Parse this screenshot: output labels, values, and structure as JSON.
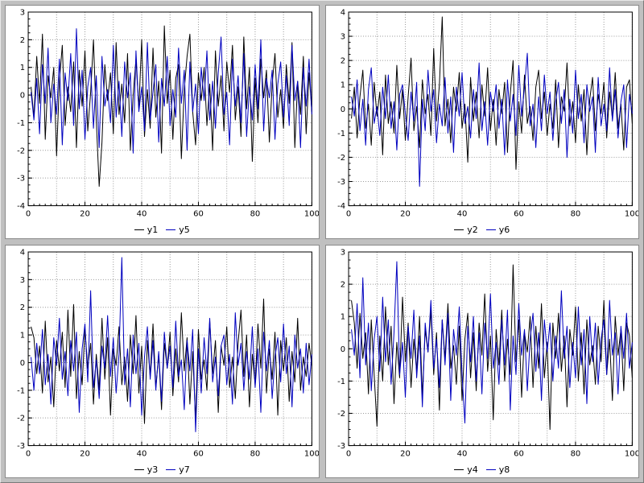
{
  "window": {
    "background": "#c0c0c0",
    "plot_background": "#ffffff"
  },
  "chart_data": [
    {
      "type": "line",
      "x_start": 1,
      "x_step": 1,
      "x_range": [
        0,
        100
      ],
      "y_range": [
        -4,
        3
      ],
      "x_ticks": [
        0,
        20,
        40,
        60,
        80,
        100
      ],
      "x_grid_step": 10,
      "x_minor_step": 2,
      "y_ticks": [
        3,
        2,
        1,
        0,
        -1,
        -2,
        -3,
        -4
      ],
      "grid": "dotted",
      "legend_position": "bottom",
      "series": [
        {
          "name": "y1",
          "color": "#000000",
          "values": [
            0.3,
            -0.8,
            1.4,
            -0.3,
            2.2,
            -1.6,
            0.7,
            -0.1,
            1.0,
            -2.2,
            0.5,
            1.8,
            -1.1,
            0.3,
            -0.6,
            1.2,
            -1.9,
            0.9,
            -0.4,
            1.6,
            -1.3,
            0.1,
            2.0,
            -0.9,
            -3.3,
            -1.7,
            1.1,
            -0.2,
            0.8,
            -1.4,
            1.9,
            -0.7,
            0.4,
            -1.0,
            1.5,
            -2.0,
            0.0,
            1.3,
            -0.5,
            2.0,
            -1.5,
            0.2,
            -1.2,
            1.7,
            -0.8,
            0.5,
            -2.1,
            2.5,
            -0.3,
            0.9,
            -1.6,
            0.6,
            1.1,
            -2.3,
            0.2,
            1.4,
            2.2,
            -0.6,
            -1.8,
            0.8,
            -0.2,
            1.0,
            -1.1,
            0.4,
            -2.0,
            1.6,
            -0.4,
            0.7,
            -1.3,
            1.2,
            0.1,
            1.8,
            -0.9,
            0.3,
            -1.5,
            2.1,
            -0.5,
            1.0,
            -2.4,
            0.6,
            -1.0,
            1.3,
            -0.1,
            0.9,
            -1.7,
            0.4,
            1.5,
            -0.8,
            0.2,
            -1.2,
            1.1,
            -0.3,
            1.9,
            -1.9,
            0.5,
            -0.7,
            1.4,
            -1.4,
            0.8,
            -0.6
          ]
        },
        {
          "name": "y5",
          "color": "#0000bf",
          "values": [
            0.1,
            -0.9,
            0.6,
            -1.4,
            1.1,
            -0.3,
            1.7,
            -1.0,
            0.4,
            -0.7,
            1.3,
            -1.8,
            0.8,
            -0.2,
            1.5,
            -1.1,
            2.4,
            -0.5,
            0.9,
            -1.6,
            0.3,
            1.0,
            -1.2,
            0.7,
            -1.9,
            1.4,
            -0.4,
            0.2,
            -1.0,
            1.8,
            -0.8,
            0.5,
            -1.5,
            1.2,
            -0.1,
            0.8,
            -2.1,
            1.6,
            -0.6,
            0.3,
            -1.3,
            1.9,
            -0.9,
            0.1,
            1.1,
            -1.7,
            0.6,
            -0.4,
            1.4,
            -1.1,
            0.2,
            -0.8,
            1.7,
            -0.3,
            0.9,
            -2.0,
            1.2,
            -0.6,
            0.4,
            -1.4,
            1.0,
            -0.2,
            1.6,
            -0.9,
            0.5,
            -1.2,
            0.8,
            2.1,
            -0.7,
            0.1,
            -1.8,
            1.3,
            -0.4,
            0.7,
            -1.0,
            1.5,
            -1.5,
            0.3,
            -0.9,
            1.1,
            -0.5,
            2.0,
            -1.3,
            0.6,
            -0.1,
            0.9,
            -1.6,
            0.4,
            1.2,
            -0.8,
            0.7,
            -1.1,
            1.8,
            -0.2,
            0.5,
            -1.9,
            1.0,
            -0.4,
            1.3,
            -0.7
          ]
        }
      ]
    },
    {
      "type": "line",
      "x_start": 1,
      "x_step": 1,
      "x_range": [
        0,
        100
      ],
      "y_range": [
        -4,
        4
      ],
      "x_ticks": [
        0,
        20,
        40,
        60,
        80,
        100
      ],
      "x_grid_step": 10,
      "x_minor_step": 2,
      "y_ticks": [
        4,
        3,
        2,
        1,
        0,
        -1,
        -2,
        -3,
        -4
      ],
      "grid": "dotted",
      "legend_position": "bottom",
      "series": [
        {
          "name": "y2",
          "color": "#000000",
          "values": [
            -0.4,
            0.9,
            -1.2,
            0.5,
            1.6,
            -0.8,
            0.2,
            -1.5,
            1.1,
            -0.3,
            0.7,
            -1.9,
            1.4,
            -0.6,
            0.3,
            -1.0,
            1.8,
            -0.4,
            0.8,
            -1.3,
            0.5,
            2.1,
            -0.9,
            0.1,
            -1.6,
            1.2,
            -0.2,
            0.6,
            -1.1,
            2.5,
            -0.5,
            1.0,
            3.8,
            -0.7,
            0.4,
            -1.4,
            0.9,
            -0.1,
            1.5,
            -0.8,
            0.2,
            -2.2,
            1.3,
            -0.5,
            0.7,
            -1.2,
            1.0,
            -0.3,
            1.7,
            -0.9,
            0.4,
            -1.5,
            0.8,
            -0.2,
            1.1,
            -1.8,
            0.6,
            2.0,
            -2.5,
            0.3,
            -1.0,
            1.4,
            -0.6,
            0.1,
            -1.3,
            0.9,
            1.6,
            -0.4,
            0.7,
            -1.1,
            0.2,
            -0.8,
            1.2,
            -1.6,
            0.5,
            -0.1,
            1.9,
            -0.7,
            0.3,
            -1.4,
            1.0,
            -0.5,
            0.8,
            -1.9,
            0.4,
            1.3,
            -0.9,
            0.6,
            -0.2,
            1.1,
            -1.2,
            0.7,
            -0.4,
            1.5,
            -0.8,
            0.2,
            -1.7,
            0.9,
            1.2,
            -0.6
          ]
        },
        {
          "name": "y6",
          "color": "#0000bf",
          "values": [
            0.5,
            -0.3,
            1.2,
            -0.9,
            0.4,
            -1.5,
            0.8,
            1.7,
            -0.6,
            0.1,
            -1.1,
            0.9,
            -0.4,
            1.4,
            -0.8,
            0.3,
            -1.7,
            0.6,
            1.0,
            -0.2,
            -1.3,
            0.7,
            -0.5,
            1.1,
            -3.2,
            0.4,
            -0.9,
            1.6,
            -0.1,
            0.8,
            -1.4,
            0.2,
            -0.7,
            1.3,
            -1.0,
            0.5,
            -1.8,
            0.9,
            -0.3,
            1.5,
            -0.6,
            0.1,
            -1.2,
            0.8,
            -0.4,
            1.9,
            -0.9,
            0.3,
            -1.5,
            0.7,
            -0.1,
            1.0,
            -0.8,
            0.4,
            -1.9,
            1.2,
            -0.5,
            0.6,
            -1.1,
            1.8,
            -0.3,
            0.9,
            2.3,
            -0.7,
            0.2,
            -1.6,
            0.5,
            -0.9,
            1.4,
            -0.2,
            0.7,
            -1.3,
            0.3,
            1.1,
            -0.6,
            0.8,
            -2.0,
            0.4,
            -1.0,
            1.6,
            -0.4,
            0.6,
            -1.4,
            1.0,
            -0.1,
            0.5,
            -1.8,
            1.3,
            -0.7,
            0.2,
            -0.9,
            1.7,
            -0.5,
            0.8,
            -1.2,
            0.3,
            1.0,
            -1.6,
            0.6,
            -0.2
          ]
        }
      ]
    },
    {
      "type": "line",
      "x_start": 1,
      "x_step": 1,
      "x_range": [
        0,
        100
      ],
      "y_range": [
        -3,
        4
      ],
      "x_ticks": [
        0,
        20,
        40,
        60,
        80,
        100
      ],
      "x_grid_step": 10,
      "x_minor_step": 2,
      "y_ticks": [
        4,
        3,
        2,
        1,
        0,
        -1,
        -2,
        -3
      ],
      "grid": "dotted",
      "legend_position": "bottom",
      "series": [
        {
          "name": "y3",
          "color": "#000000",
          "values": [
            1.3,
            0.9,
            -0.4,
            0.6,
            -1.1,
            1.5,
            -0.7,
            0.2,
            -1.6,
            0.8,
            -0.3,
            1.1,
            -0.9,
            1.9,
            -0.5,
            2.1,
            -1.3,
            0.4,
            -0.8,
            1.2,
            -0.2,
            0.7,
            -1.5,
            0.3,
            -1.0,
            1.6,
            -0.6,
            0.9,
            -1.9,
            0.5,
            -0.1,
            1.3,
            -0.8,
            0.2,
            -1.4,
            1.0,
            -0.4,
            1.7,
            -1.1,
            0.6,
            -2.2,
            0.8,
            -0.5,
            1.4,
            -0.9,
            0.3,
            -1.7,
            0.7,
            -0.2,
            1.1,
            -1.2,
            0.5,
            -0.7,
            1.8,
            -0.3,
            0.9,
            -1.5,
            0.4,
            -2.1,
            1.2,
            -0.6,
            0.1,
            -1.0,
            1.5,
            -0.4,
            0.8,
            -1.8,
            0.6,
            -0.1,
            1.3,
            -0.9,
            0.2,
            -1.3,
            0.7,
            1.9,
            -0.5,
            1.0,
            -1.6,
            0.3,
            -0.8,
            1.4,
            -0.2,
            2.3,
            -1.1,
            0.5,
            -0.6,
            1.1,
            -1.9,
            0.8,
            -0.3,
            0.9,
            -1.4,
            0.4,
            -0.7,
            1.6,
            -1.0,
            0.2,
            -0.5,
            0.7,
            -0.1
          ]
        },
        {
          "name": "y7",
          "color": "#0000bf",
          "values": [
            0.2,
            -1.0,
            0.7,
            -0.4,
            1.2,
            -0.8,
            0.3,
            -1.5,
            0.9,
            -0.1,
            1.6,
            -0.6,
            0.4,
            -1.2,
            0.8,
            -0.3,
            1.1,
            -1.8,
            0.5,
            1.4,
            -0.7,
            2.6,
            -0.9,
            0.1,
            -1.3,
            0.6,
            -0.2,
            1.7,
            -0.5,
            0.9,
            -1.1,
            0.3,
            3.8,
            -0.8,
            0.5,
            -1.6,
            1.0,
            -0.4,
            0.7,
            -1.9,
            0.2,
            1.3,
            -0.6,
            0.8,
            -1.0,
            0.4,
            -1.4,
            1.1,
            -0.2,
            0.6,
            -0.9,
            1.5,
            -0.5,
            0.1,
            -1.7,
            0.8,
            -0.3,
            1.2,
            -2.5,
            0.5,
            -1.1,
            0.9,
            -0.4,
            1.6,
            -0.7,
            0.2,
            -1.2,
            0.6,
            1.0,
            -0.8,
            0.3,
            -1.5,
            1.8,
            -0.1,
            0.7,
            -1.0,
            0.4,
            -0.6,
            1.3,
            -0.9,
            0.5,
            -1.8,
            1.1,
            -0.3,
            0.8,
            -1.3,
            0.2,
            0.9,
            -0.7,
            1.4,
            -0.4,
            0.6,
            -1.6,
            1.0,
            -0.2,
            0.5,
            -1.1,
            0.7,
            -0.8,
            0.3
          ]
        }
      ]
    },
    {
      "type": "line",
      "x_start": 1,
      "x_step": 1,
      "x_range": [
        0,
        100
      ],
      "y_range": [
        -3,
        3
      ],
      "x_ticks": [
        0,
        20,
        40,
        60,
        80,
        100
      ],
      "x_grid_step": 10,
      "x_minor_step": 2,
      "y_ticks": [
        3,
        2,
        1,
        0,
        -1,
        -2,
        -3
      ],
      "grid": "dotted",
      "legend_position": "bottom",
      "series": [
        {
          "name": "y4",
          "color": "#000000",
          "values": [
            1.5,
            0.8,
            -0.6,
            1.1,
            -0.3,
            0.5,
            -1.4,
            0.9,
            -0.8,
            -2.4,
            0.4,
            -1.0,
            1.3,
            -0.5,
            0.7,
            -1.7,
            0.2,
            -0.9,
            1.6,
            -0.4,
            0.8,
            -1.2,
            0.3,
            -0.7,
            1.0,
            -1.5,
            0.6,
            -0.1,
            1.2,
            -0.8,
            0.5,
            -1.9,
            0.9,
            -0.3,
            1.4,
            -0.6,
            0.1,
            -1.1,
            0.7,
            -1.6,
            0.3,
            1.1,
            -0.9,
            0.5,
            -1.3,
            0.8,
            -0.2,
            1.7,
            -0.7,
            0.4,
            -2.2,
            0.6,
            -0.5,
            1.2,
            -1.0,
            0.3,
            -0.8,
            2.6,
            -0.4,
            0.9,
            -1.5,
            0.5,
            -0.1,
            1.0,
            -1.2,
            0.7,
            -0.6,
            1.4,
            -0.9,
            0.2,
            -2.5,
            0.8,
            -0.3,
            1.1,
            -0.7,
            0.4,
            -1.8,
            0.6,
            -0.2,
            1.3,
            -1.0,
            0.5,
            -1.4,
            0.9,
            -0.5,
            0.1,
            -1.1,
            0.7,
            -0.4,
            1.5,
            -0.8,
            0.3,
            -1.6,
            1.0,
            -0.2,
            0.6,
            -1.3,
            0.8,
            0.4,
            -0.9
          ]
        },
        {
          "name": "y8",
          "color": "#0000bf",
          "values": [
            0.6,
            -0.2,
            1.4,
            -0.9,
            2.2,
            -0.5,
            0.8,
            -1.3,
            0.3,
            1.0,
            -0.7,
            1.6,
            -0.4,
            0.9,
            -1.1,
            0.5,
            2.7,
            -0.8,
            0.2,
            -1.5,
            0.7,
            -0.3,
            1.2,
            -0.9,
            0.4,
            -1.8,
            0.8,
            -0.1,
            1.5,
            -0.6,
            0.3,
            -1.2,
            0.9,
            -0.5,
            1.1,
            -1.6,
            0.6,
            -0.2,
            1.3,
            -0.8,
            -2.3,
            0.7,
            -0.4,
            1.0,
            -1.0,
            0.5,
            -1.4,
            0.8,
            -0.3,
            1.7,
            -0.6,
            0.2,
            -1.1,
            0.9,
            -0.5,
            1.2,
            -1.9,
            0.4,
            -0.8,
            1.4,
            -0.2,
            0.6,
            -1.3,
            0.3,
            1.1,
            -0.7,
            0.5,
            -1.6,
            0.9,
            -0.1,
            0.8,
            -1.0,
            0.4,
            -0.6,
            1.8,
            -0.3,
            0.7,
            -1.2,
            0.2,
            -0.9,
            1.3,
            -0.5,
            0.6,
            -1.7,
            1.0,
            -0.4,
            0.8,
            -1.1,
            0.3,
            0.9,
            -0.8,
            1.5,
            -0.2,
            0.5,
            -1.4,
            0.7,
            -0.3,
            1.1,
            -0.6,
            0.2
          ]
        }
      ]
    }
  ]
}
